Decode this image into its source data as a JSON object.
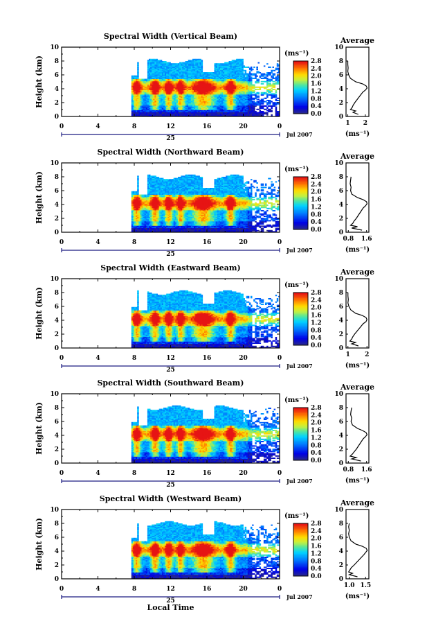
{
  "chart_data": [
    {
      "type": "heatmap",
      "title": "Spectral Width (Vertical Beam)",
      "ylabel": "Height (km)",
      "xlabel": "",
      "xlim": [
        0,
        24
      ],
      "ylim": [
        0,
        10
      ],
      "x_ticks": [
        "0",
        "4",
        "8",
        "12",
        "16",
        "20",
        "0"
      ],
      "y_ticks": [
        "0",
        "2",
        "4",
        "6",
        "8",
        "10"
      ],
      "day_label": "25",
      "date_label": "Jul 2007",
      "colorbar": {
        "unit": "(ms⁻¹)",
        "ticks": [
          "0.0",
          "0.4",
          "0.8",
          "1.2",
          "1.6",
          "2.0",
          "2.4",
          "2.8"
        ]
      },
      "average_profile": {
        "title": "Average",
        "xlabel": "(ms⁻¹)",
        "x_ticks": [
          "1",
          "2"
        ],
        "xlim": [
          0.9,
          2.2
        ],
        "y_ticks": [
          "0",
          "2",
          "4",
          "6",
          "8",
          "10"
        ],
        "ylim": [
          0,
          10
        ],
        "height_km": [
          0.3,
          0.6,
          0.8,
          1.0,
          1.3,
          1.6,
          2.0,
          2.5,
          3.0,
          3.5,
          3.8,
          4.1,
          4.4,
          4.7,
          5.0,
          5.5,
          6.0,
          6.5,
          7.0,
          7.5,
          8.0
        ],
        "values": [
          1.6,
          1.3,
          1.45,
          1.15,
          1.25,
          1.3,
          1.4,
          1.55,
          1.7,
          1.85,
          2.0,
          2.1,
          2.05,
          1.85,
          1.45,
          1.15,
          1.05,
          1.0,
          1.02,
          1.0,
          1.0
        ]
      }
    },
    {
      "type": "heatmap",
      "title": "Spectral Width (Northward Beam)",
      "ylabel": "Height (km)",
      "xlabel": "",
      "xlim": [
        0,
        24
      ],
      "ylim": [
        0,
        10
      ],
      "x_ticks": [
        "0",
        "4",
        "8",
        "12",
        "16",
        "20",
        "0"
      ],
      "y_ticks": [
        "0",
        "2",
        "4",
        "6",
        "8",
        "10"
      ],
      "day_label": "25",
      "date_label": "Jul 2007",
      "colorbar": {
        "unit": "(ms⁻¹)",
        "ticks": [
          "0.0",
          "0.4",
          "0.8",
          "1.2",
          "1.6",
          "2.0",
          "2.4",
          "2.8"
        ]
      },
      "average_profile": {
        "title": "Average",
        "xlabel": "(ms⁻¹)",
        "x_ticks": [
          "0.8",
          "1.6"
        ],
        "xlim": [
          0.7,
          1.7
        ],
        "y_ticks": [
          "0",
          "2",
          "4",
          "6",
          "8",
          "10"
        ],
        "ylim": [
          0,
          10
        ],
        "height_km": [
          0.3,
          0.6,
          0.8,
          1.0,
          1.3,
          1.6,
          2.0,
          2.5,
          3.0,
          3.5,
          3.8,
          4.1,
          4.4,
          4.7,
          5.0,
          5.5,
          6.0,
          6.5,
          7.0,
          7.5,
          8.0
        ],
        "values": [
          1.4,
          0.95,
          1.2,
          0.9,
          1.0,
          1.05,
          1.15,
          1.25,
          1.35,
          1.45,
          1.55,
          1.62,
          1.6,
          1.45,
          1.2,
          0.95,
          0.9,
          0.92,
          0.88,
          0.9,
          0.92
        ]
      }
    },
    {
      "type": "heatmap",
      "title": "Spectral Width (Eastward Beam)",
      "ylabel": "Height (km)",
      "xlabel": "",
      "xlim": [
        0,
        24
      ],
      "ylim": [
        0,
        10
      ],
      "x_ticks": [
        "0",
        "4",
        "8",
        "12",
        "16",
        "20",
        "0"
      ],
      "y_ticks": [
        "0",
        "2",
        "4",
        "6",
        "8",
        "10"
      ],
      "day_label": "25",
      "date_label": "Jul 2007",
      "colorbar": {
        "unit": "(ms⁻¹)",
        "ticks": [
          "0.0",
          "0.4",
          "0.8",
          "1.2",
          "1.6",
          "2.0",
          "2.4",
          "2.8"
        ]
      },
      "average_profile": {
        "title": "Average",
        "xlabel": "(ms⁻¹)",
        "x_ticks": [
          "1",
          "2"
        ],
        "xlim": [
          0.9,
          2.1
        ],
        "y_ticks": [
          "0",
          "2",
          "4",
          "6",
          "8",
          "10"
        ],
        "ylim": [
          0,
          10
        ],
        "height_km": [
          0.3,
          0.6,
          0.8,
          1.0,
          1.3,
          1.6,
          2.0,
          2.5,
          3.0,
          3.5,
          3.8,
          4.1,
          4.4,
          4.7,
          5.0,
          5.5,
          6.0,
          6.5,
          7.0,
          7.5,
          8.0
        ],
        "values": [
          1.55,
          1.2,
          1.4,
          1.1,
          1.2,
          1.25,
          1.35,
          1.5,
          1.65,
          1.8,
          1.95,
          2.0,
          1.95,
          1.75,
          1.4,
          1.15,
          1.05,
          1.0,
          1.02,
          1.0,
          1.0
        ]
      }
    },
    {
      "type": "heatmap",
      "title": "Spectral Width (Southward Beam)",
      "ylabel": "Height (km)",
      "xlabel": "",
      "xlim": [
        0,
        24
      ],
      "ylim": [
        0,
        10
      ],
      "x_ticks": [
        "0",
        "4",
        "8",
        "12",
        "16",
        "20",
        "0"
      ],
      "y_ticks": [
        "0",
        "2",
        "4",
        "6",
        "8",
        "10"
      ],
      "day_label": "25",
      "date_label": "Jul 2007",
      "colorbar": {
        "unit": "(ms⁻¹)",
        "ticks": [
          "0.0",
          "0.4",
          "0.8",
          "1.2",
          "1.6",
          "2.0",
          "2.4",
          "2.8"
        ]
      },
      "average_profile": {
        "title": "Average",
        "xlabel": "(ms⁻¹)",
        "x_ticks": [
          "0.8",
          "1.6"
        ],
        "xlim": [
          0.7,
          1.7
        ],
        "y_ticks": [
          "0",
          "2",
          "4",
          "6",
          "8",
          "10"
        ],
        "ylim": [
          0,
          10
        ],
        "height_km": [
          0.3,
          0.6,
          0.8,
          1.0,
          1.3,
          1.6,
          2.0,
          2.5,
          3.0,
          3.5,
          3.8,
          4.1,
          4.4,
          4.7,
          5.0,
          5.5,
          6.0,
          6.5,
          7.0,
          7.5,
          8.0
        ],
        "values": [
          1.35,
          0.95,
          1.15,
          0.88,
          0.98,
          1.05,
          1.15,
          1.25,
          1.35,
          1.45,
          1.55,
          1.62,
          1.58,
          1.42,
          1.2,
          0.98,
          0.92,
          0.95,
          0.9,
          0.92,
          0.95
        ]
      }
    },
    {
      "type": "heatmap",
      "title": "Spectral Width (Westward Beam)",
      "ylabel": "Height (km)",
      "xlabel": "Local Time",
      "xlim": [
        0,
        24
      ],
      "ylim": [
        0,
        10
      ],
      "x_ticks": [
        "0",
        "4",
        "8",
        "12",
        "16",
        "20",
        "0"
      ],
      "y_ticks": [
        "0",
        "2",
        "4",
        "6",
        "8",
        "10"
      ],
      "day_label": "25",
      "date_label": "Jul 2007",
      "colorbar": {
        "unit": "(ms⁻¹)",
        "ticks": [
          "0.0",
          "0.4",
          "0.8",
          "1.2",
          "1.6",
          "2.0",
          "2.4",
          "2.8"
        ]
      },
      "average_profile": {
        "title": "Average",
        "xlabel": "(ms⁻¹)",
        "x_ticks": [
          "1.0",
          "1.5"
        ],
        "xlim": [
          0.9,
          1.6
        ],
        "y_ticks": [
          "0",
          "2",
          "4",
          "6",
          "8",
          "10"
        ],
        "ylim": [
          0,
          10
        ],
        "height_km": [
          0.3,
          0.6,
          0.8,
          1.0,
          1.3,
          1.6,
          2.0,
          2.5,
          3.0,
          3.5,
          3.8,
          4.1,
          4.4,
          4.7,
          5.0,
          5.5,
          6.0,
          6.5,
          7.0,
          7.5,
          8.0
        ],
        "values": [
          1.25,
          1.0,
          1.1,
          0.98,
          1.02,
          1.06,
          1.15,
          1.25,
          1.35,
          1.45,
          1.5,
          1.55,
          1.52,
          1.4,
          1.2,
          1.05,
          1.0,
          0.98,
          1.0,
          0.98,
          1.0
        ]
      }
    }
  ]
}
